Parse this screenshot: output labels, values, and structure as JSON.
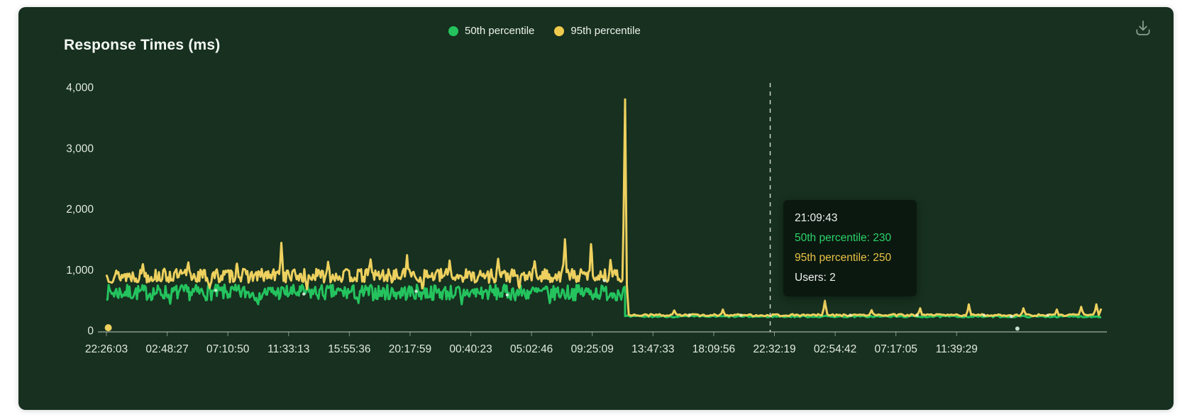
{
  "page": {
    "background": "#ffffff"
  },
  "panel": {
    "title": "Response Times (ms)",
    "background": "#17301f"
  },
  "legend": {
    "items": [
      {
        "label": "50th percentile",
        "color": "#24c35e"
      },
      {
        "label": "95th percentile",
        "color": "#f0ca4d"
      }
    ]
  },
  "toolbar": {
    "download_icon": "download-icon"
  },
  "tooltip": {
    "time": "21:09:43",
    "p50_label": "50th percentile: 230",
    "p95_label": "95th percentile: 250",
    "users_label": "Users: 2",
    "p50_color": "#2bd36b",
    "p95_color": "#e9c247",
    "text_color": "#f0f2f0"
  },
  "chart_data": {
    "type": "line",
    "title": "Response Times (ms)",
    "xlabel": "",
    "ylabel": "",
    "grid": false,
    "legend_position": "top-center",
    "x_tick_labels": [
      "22:26:03",
      "02:48:27",
      "07:10:50",
      "11:33:13",
      "15:55:36",
      "20:17:59",
      "00:40:23",
      "05:02:46",
      "09:25:09",
      "13:47:33",
      "18:09:56",
      "22:32:19",
      "02:54:42",
      "07:17:05",
      "11:39:29"
    ],
    "x_units_total": 16.38,
    "ylim": [
      0,
      4000
    ],
    "y_ticks": [
      {
        "v": 0,
        "label": "0"
      },
      {
        "v": 1000,
        "label": "1,000"
      },
      {
        "v": 2000,
        "label": "2,000"
      },
      {
        "v": 3000,
        "label": "3,000"
      },
      {
        "v": 4000,
        "label": "4,000"
      }
    ],
    "axis_text_color": "#e2e9e2",
    "axis_line_color": "rgba(224,232,224,0.85)",
    "spike_width": 0.035,
    "hover": {
      "u": 10.93,
      "time": "21:09:43",
      "p50": 230,
      "p95": 250,
      "users": 2
    },
    "series": [
      {
        "name": "50th percentile",
        "color": "#24c35e",
        "dot_color": "#d7f3de",
        "width": 3,
        "seed": 7,
        "segments": [
          {
            "from": 0,
            "to": 8.54,
            "base": 625,
            "jitter": 130,
            "step": 0.018
          },
          {
            "from": 8.54,
            "to": 16.38,
            "base": 230,
            "jitter": 14,
            "step": 0.03
          }
        ],
        "spikes": [
          {
            "u": 1.05,
            "v": 440
          },
          {
            "u": 2.5,
            "v": 430
          },
          {
            "u": 4.15,
            "v": 450
          },
          {
            "u": 5.85,
            "v": 430
          },
          {
            "u": 7.3,
            "v": 450
          }
        ],
        "dots": [
          {
            "u": 1.8,
            "v": 660
          },
          {
            "u": 3.25,
            "v": 600
          },
          {
            "u": 5.1,
            "v": 645
          },
          {
            "u": 6.6,
            "v": 585
          },
          {
            "u": 8.2,
            "v": 820
          },
          {
            "u": 14.9,
            "v": 228
          },
          {
            "u": 15.0,
            "v": 30,
            "r": 3
          }
        ]
      },
      {
        "name": "95th percentile",
        "color": "#edd05e",
        "dot_color": "#f6ecb4",
        "width": 3,
        "seed": 13,
        "segments": [
          {
            "from": 0,
            "to": 8.54,
            "base": 900,
            "jitter": 115,
            "step": 0.018
          },
          {
            "from": 8.54,
            "to": 16.38,
            "base": 252,
            "jitter": 18,
            "step": 0.03
          }
        ],
        "spikes": [
          {
            "u": 0.6,
            "v": 1090
          },
          {
            "u": 1.35,
            "v": 1120
          },
          {
            "u": 1.7,
            "v": 700
          },
          {
            "u": 2.15,
            "v": 1100
          },
          {
            "u": 2.88,
            "v": 1440
          },
          {
            "u": 3.3,
            "v": 680
          },
          {
            "u": 3.65,
            "v": 1130
          },
          {
            "u": 4.35,
            "v": 1170
          },
          {
            "u": 4.95,
            "v": 1240
          },
          {
            "u": 5.2,
            "v": 690
          },
          {
            "u": 5.65,
            "v": 1150
          },
          {
            "u": 6.45,
            "v": 1180
          },
          {
            "u": 6.8,
            "v": 700
          },
          {
            "u": 7.05,
            "v": 1140
          },
          {
            "u": 7.55,
            "v": 1500
          },
          {
            "u": 7.98,
            "v": 1420
          },
          {
            "u": 8.3,
            "v": 1160
          },
          {
            "u": 8.54,
            "v": 3800
          },
          {
            "u": 9.35,
            "v": 330
          },
          {
            "u": 10.15,
            "v": 345
          },
          {
            "u": 11.83,
            "v": 490
          },
          {
            "u": 12.6,
            "v": 335
          },
          {
            "u": 13.4,
            "v": 365
          },
          {
            "u": 14.2,
            "v": 430
          },
          {
            "u": 15.1,
            "v": 365
          },
          {
            "u": 15.65,
            "v": 345
          },
          {
            "u": 16.05,
            "v": 390
          },
          {
            "u": 16.3,
            "v": 430
          },
          {
            "u": 16.38,
            "v": 360
          }
        ],
        "dots": [
          {
            "u": 0.03,
            "v": 45,
            "r": 5,
            "solid": true
          },
          {
            "u": 9.6,
            "v": 255
          },
          {
            "u": 10.45,
            "v": 250
          },
          {
            "u": 12.25,
            "v": 252
          },
          {
            "u": 13.35,
            "v": 250
          },
          {
            "u": 14.45,
            "v": 252
          },
          {
            "u": 15.5,
            "v": 250
          }
        ]
      }
    ]
  }
}
